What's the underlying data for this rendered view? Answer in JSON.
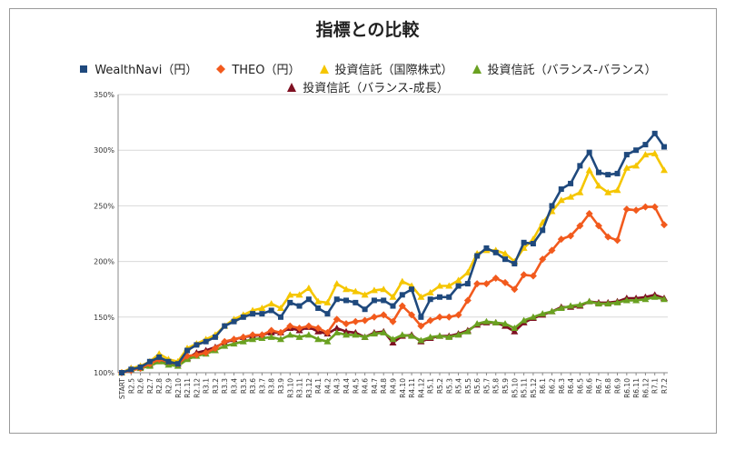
{
  "chart_data": {
    "type": "line",
    "title": "指標との比較",
    "xlabel": "",
    "ylabel": "",
    "ylim": [
      100,
      350
    ],
    "y_ticks": [
      "100%",
      "150%",
      "200%",
      "250%",
      "300%",
      "350%"
    ],
    "grid": true,
    "legend_position": "top",
    "x": [
      "START",
      "R2.5",
      "R2.6",
      "R2.7",
      "R2.8",
      "R2.9",
      "R2.10",
      "R2.11",
      "R2.12",
      "R3.1",
      "R3.2",
      "R3.3",
      "R3.4",
      "R3.5",
      "R3.6",
      "R3.7",
      "R3.8",
      "R3.9",
      "R3.10",
      "R3.11",
      "R3.12",
      "R4.1",
      "R4.2",
      "R4.3",
      "R4.4",
      "R4.5",
      "R4.6",
      "R4.7",
      "R4.8",
      "R4.9",
      "R4.10",
      "R4.11",
      "R4.12",
      "R5.1",
      "R5.2",
      "R5.3",
      "R5.4",
      "R5.5",
      "R5.6",
      "R5.7",
      "R5.8",
      "R5.9",
      "R5.10",
      "R5.11",
      "R5.12",
      "R6.1",
      "R6.2",
      "R6.3",
      "R6.4",
      "R6.5",
      "R6.6",
      "R6.7",
      "R6.8",
      "R6.9",
      "R6.10",
      "R6.11",
      "R6.12",
      "R7.1",
      "R7.2"
    ],
    "series": [
      {
        "name": "WealthNavi（円）",
        "color": "#1f497d",
        "marker": "square",
        "values": [
          100,
          103,
          105,
          110,
          114,
          110,
          108,
          120,
          125,
          128,
          132,
          142,
          146,
          150,
          153,
          153,
          156,
          150,
          163,
          160,
          166,
          158,
          153,
          166,
          165,
          163,
          157,
          165,
          165,
          160,
          170,
          175,
          150,
          166,
          168,
          168,
          178,
          180,
          205,
          212,
          208,
          202,
          198,
          217,
          216,
          228,
          250,
          265,
          270,
          286,
          298,
          280,
          278,
          279,
          296,
          300,
          305,
          315,
          303
        ]
      },
      {
        "name": "THEO（円）",
        "color": "#f25a1d",
        "marker": "diamond",
        "values": [
          100,
          102,
          104,
          108,
          112,
          110,
          108,
          115,
          116,
          118,
          122,
          128,
          130,
          132,
          134,
          134,
          138,
          136,
          142,
          140,
          142,
          140,
          136,
          148,
          144,
          146,
          147,
          150,
          152,
          146,
          160,
          152,
          142,
          147,
          150,
          150,
          152,
          165,
          180,
          180,
          185,
          181,
          175,
          188,
          187,
          202,
          210,
          220,
          223,
          232,
          243,
          232,
          222,
          219,
          247,
          246,
          249,
          249,
          233
        ]
      },
      {
        "name": "投資信託（国際株式）",
        "color": "#f5c600",
        "marker": "triangle",
        "values": [
          100,
          104,
          106,
          110,
          117,
          112,
          110,
          122,
          126,
          130,
          134,
          142,
          148,
          152,
          156,
          158,
          162,
          158,
          170,
          170,
          176,
          164,
          163,
          180,
          175,
          173,
          170,
          174,
          175,
          168,
          182,
          178,
          168,
          172,
          178,
          178,
          183,
          190,
          207,
          210,
          210,
          207,
          200,
          212,
          220,
          235,
          245,
          255,
          258,
          262,
          282,
          268,
          262,
          264,
          284,
          286,
          296,
          297,
          282
        ]
      },
      {
        "name": "投資信託（バランス-バランス）",
        "color": "#6aa121",
        "marker": "triangle",
        "values": [
          100,
          103,
          104,
          106,
          110,
          107,
          106,
          112,
          115,
          117,
          120,
          124,
          126,
          128,
          130,
          131,
          132,
          130,
          134,
          132,
          134,
          130,
          128,
          136,
          134,
          134,
          132,
          135,
          136,
          130,
          134,
          133,
          129,
          132,
          133,
          132,
          134,
          137,
          144,
          146,
          145,
          144,
          140,
          147,
          150,
          153,
          155,
          158,
          160,
          161,
          164,
          162,
          162,
          163,
          165,
          165,
          166,
          168,
          166
        ]
      },
      {
        "name": "投資信託（バランス-成長）",
        "color": "#7f1022",
        "marker": "triangle",
        "values": [
          100,
          104,
          105,
          107,
          112,
          109,
          108,
          113,
          118,
          120,
          123,
          127,
          130,
          132,
          133,
          134,
          136,
          136,
          140,
          138,
          141,
          137,
          135,
          140,
          137,
          136,
          132,
          136,
          137,
          127,
          133,
          134,
          128,
          131,
          133,
          133,
          135,
          138,
          143,
          145,
          145,
          142,
          137,
          145,
          149,
          152,
          155,
          159,
          159,
          160,
          164,
          163,
          163,
          164,
          167,
          167,
          168,
          170,
          167
        ]
      }
    ]
  }
}
